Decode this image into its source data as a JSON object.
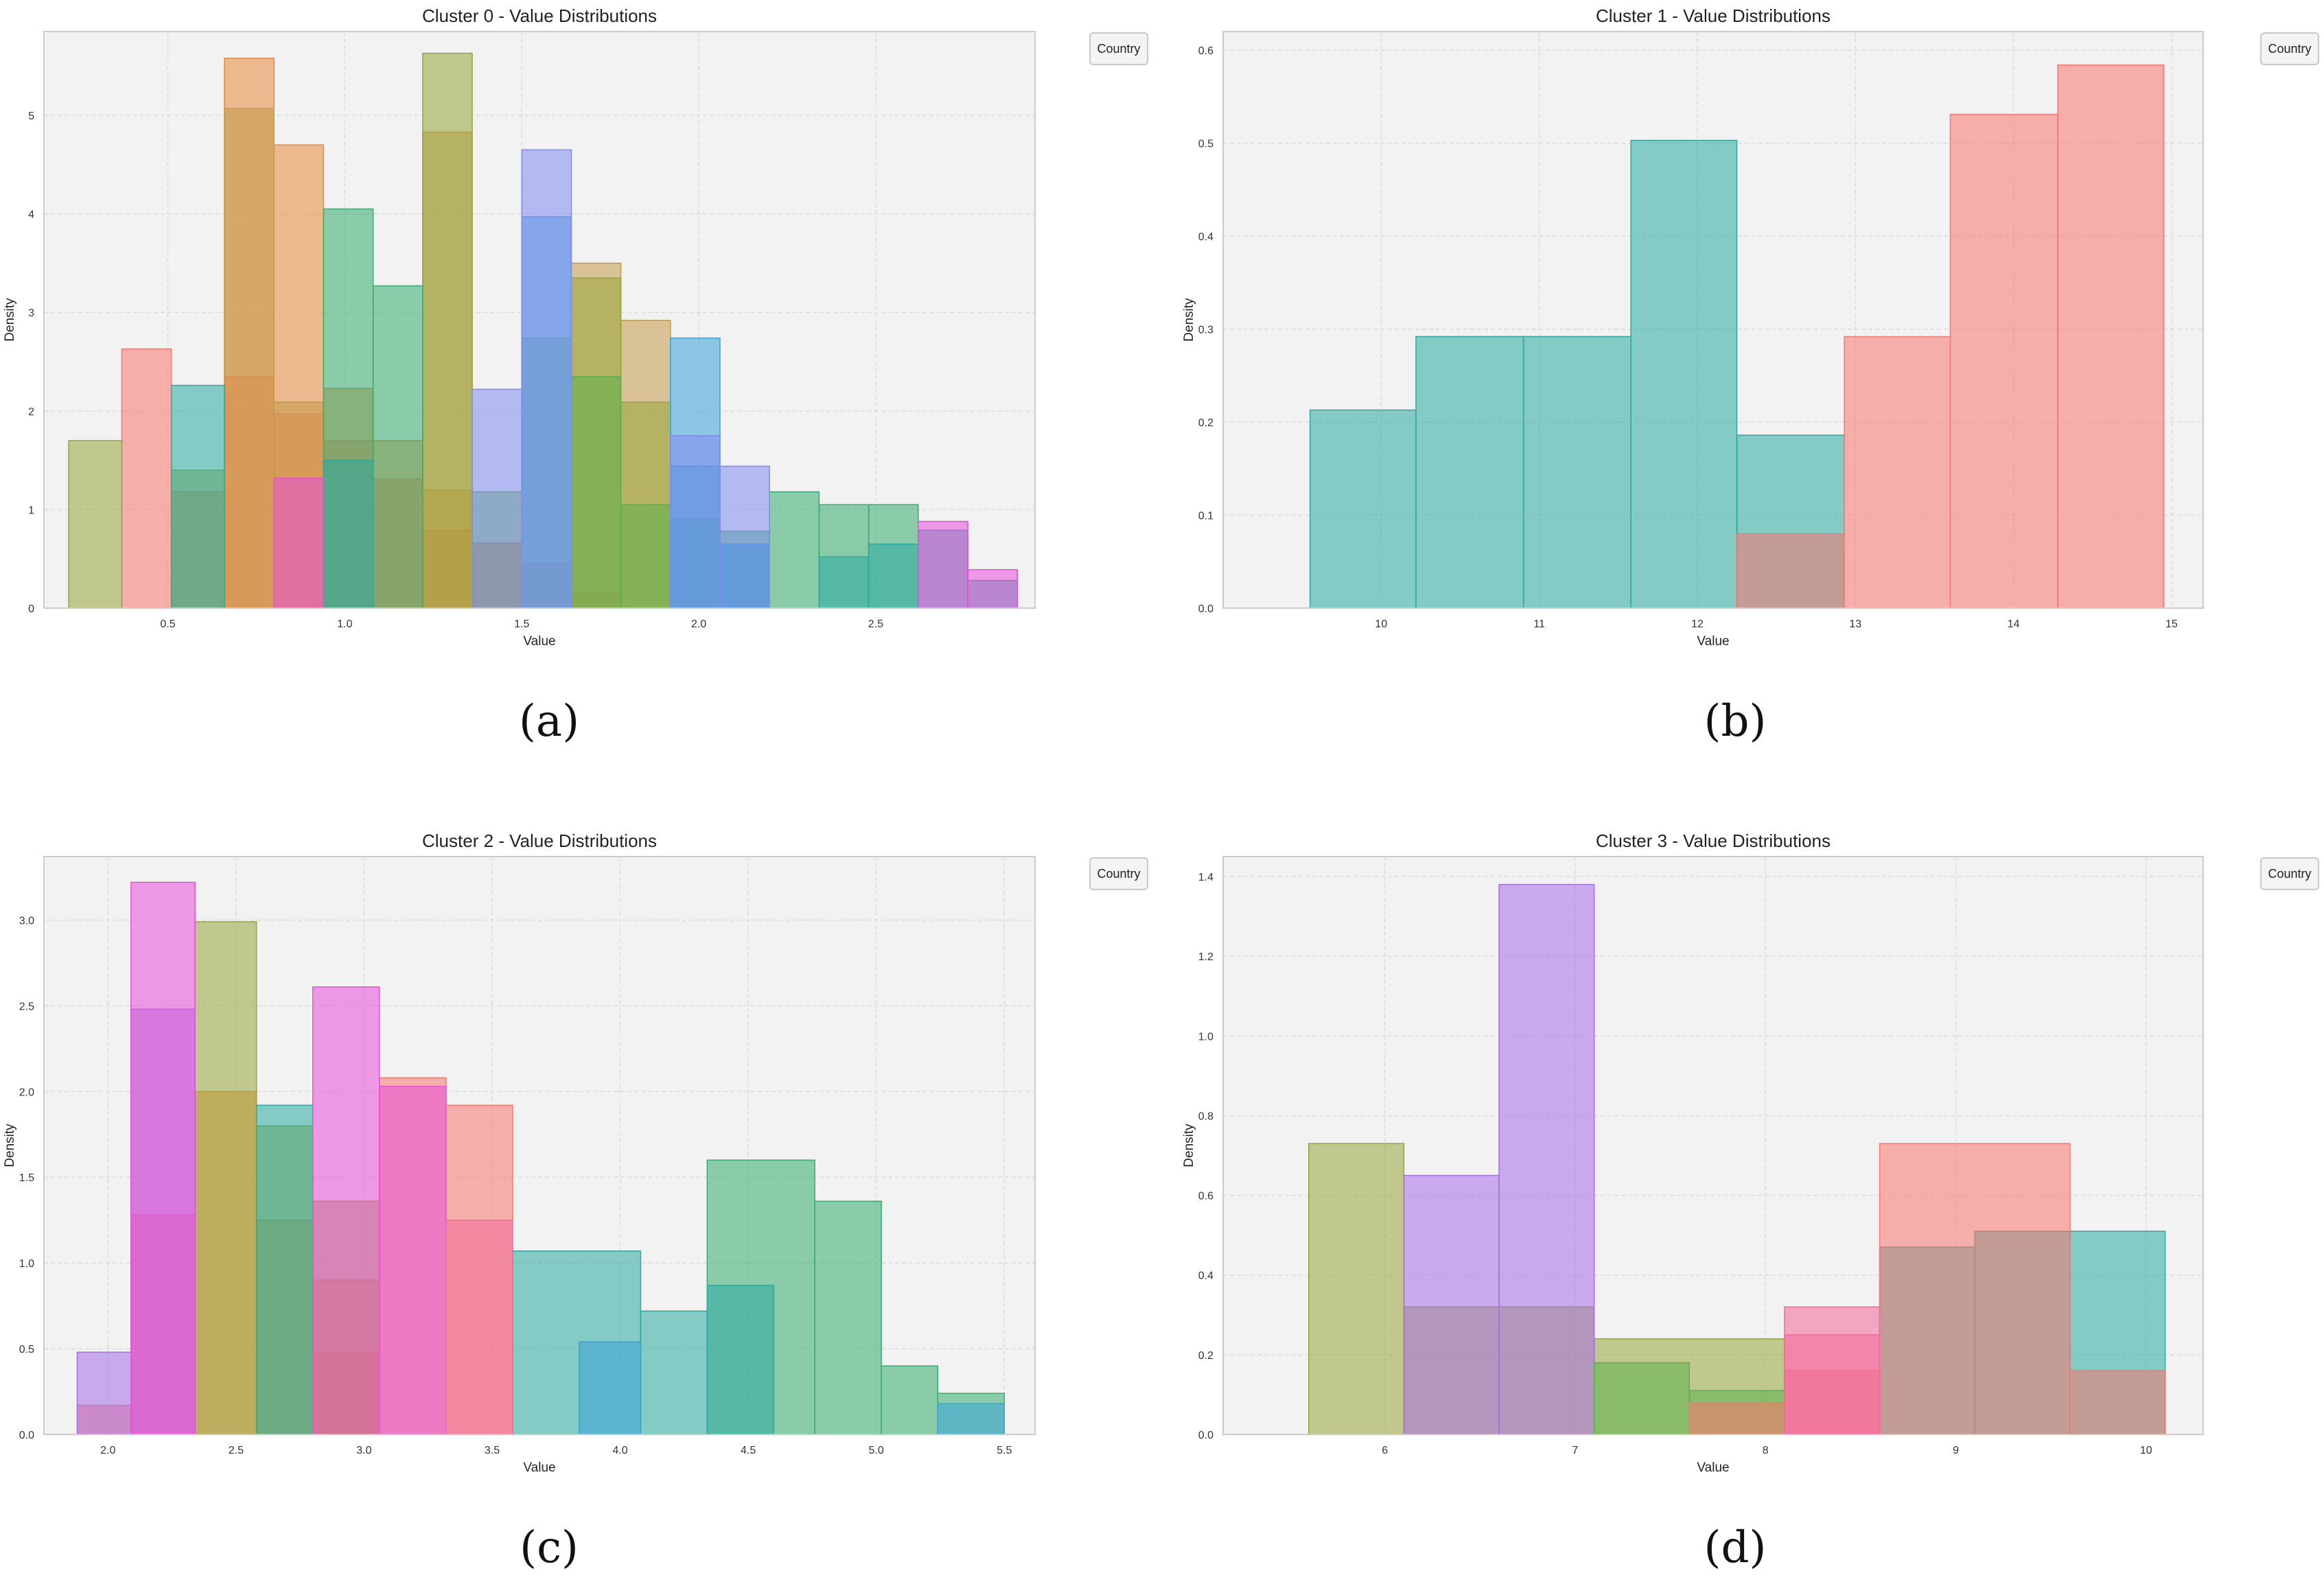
{
  "colors": {
    "plot_background": "#f2f2f2",
    "grid": "#dcdcdc",
    "spine": "#cccccc",
    "legend_border": "#c8c8c8"
  },
  "chart_data": [
    {
      "type": "histogram",
      "title": "Cluster 0 - Value Distributions",
      "xlabel": "Value",
      "ylabel": "Density",
      "legend_title": "Country",
      "legend_placement": "outside-top-right",
      "caption": "(a)",
      "grid": true,
      "xlim": [
        0.15,
        2.95
      ],
      "ylim": [
        0,
        5.85
      ],
      "xticks": [
        0.5,
        1.0,
        1.5,
        2.0,
        2.5
      ],
      "xtick_labels": [
        "0.5",
        "1.0",
        "1.5",
        "2.0",
        "2.5"
      ],
      "yticks": [
        0,
        1,
        2,
        3,
        4,
        5
      ],
      "ytick_labels": [
        "0",
        "1",
        "2",
        "3",
        "4",
        "5"
      ],
      "series": [
        {
          "color": "#f8766d",
          "bins": [
            [
              0.37,
              0.51,
              2.63
            ],
            [
              0.51,
              0.66,
              1.18
            ],
            [
              0.66,
              0.8,
              2.35
            ],
            [
              0.8,
              0.94,
              1.97
            ],
            [
              0.94,
              1.08,
              1.7
            ],
            [
              1.08,
              1.22,
              1.31
            ],
            [
              1.22,
              1.36,
              0.79
            ],
            [
              1.36,
              1.5,
              0.66
            ],
            [
              1.5,
              1.64,
              0.45
            ],
            [
              1.64,
              1.78,
              0.15
            ]
          ]
        },
        {
          "color": "#e58a3a",
          "bins": [
            [
              0.66,
              0.8,
              5.58
            ],
            [
              0.8,
              0.94,
              4.7
            ],
            [
              0.94,
              1.08,
              2.23
            ],
            [
              1.08,
              1.22,
              1.7
            ],
            [
              1.22,
              1.36,
              1.2
            ],
            [
              1.36,
              1.5,
              0.65
            ]
          ]
        },
        {
          "color": "#c49a4a",
          "bins": [
            [
              0.66,
              0.8,
              5.07
            ],
            [
              0.8,
              0.94,
              2.09
            ],
            [
              1.22,
              1.36,
              4.83
            ],
            [
              1.64,
              1.78,
              3.5
            ],
            [
              1.78,
              1.92,
              2.92
            ]
          ]
        },
        {
          "color": "#97a63a",
          "bins": [
            [
              0.22,
              0.37,
              1.7
            ],
            [
              0.51,
              0.66,
              1.4
            ],
            [
              1.22,
              1.36,
              5.63
            ],
            [
              1.64,
              1.78,
              3.35
            ],
            [
              1.78,
              1.92,
              2.09
            ]
          ]
        },
        {
          "color": "#5bb04a",
          "bins": [
            [
              1.36,
              1.5,
              1.18
            ],
            [
              1.5,
              1.64,
              2.74
            ],
            [
              1.64,
              1.78,
              2.35
            ],
            [
              1.78,
              1.92,
              1.05
            ]
          ]
        },
        {
          "color": "#35ad70",
          "bins": [
            [
              0.94,
              1.08,
              4.05
            ],
            [
              1.08,
              1.22,
              3.27
            ],
            [
              1.92,
              2.06,
              0.91
            ],
            [
              2.06,
              2.2,
              0.78
            ],
            [
              2.2,
              2.34,
              1.18
            ],
            [
              2.34,
              2.48,
              1.05
            ],
            [
              2.48,
              2.62,
              1.05
            ]
          ]
        },
        {
          "color": "#29aaa0",
          "bins": [
            [
              0.51,
              0.66,
              2.26
            ],
            [
              0.94,
              1.08,
              1.5
            ],
            [
              1.92,
              2.06,
              1.44
            ],
            [
              2.06,
              2.2,
              0.65
            ],
            [
              2.34,
              2.48,
              0.52
            ],
            [
              2.48,
              2.62,
              0.65
            ],
            [
              2.62,
              2.76,
              0.79
            ],
            [
              2.76,
              2.9,
              0.28
            ]
          ]
        },
        {
          "color": "#3aa2d8",
          "bins": [
            [
              1.5,
              1.64,
              3.97
            ],
            [
              1.92,
              2.06,
              2.74
            ],
            [
              2.06,
              2.2,
              0.65
            ]
          ]
        },
        {
          "color": "#7f8cf0",
          "bins": [
            [
              1.36,
              1.5,
              2.22
            ],
            [
              1.5,
              1.64,
              4.65
            ],
            [
              1.92,
              2.06,
              1.75
            ],
            [
              2.06,
              2.2,
              1.44
            ]
          ]
        },
        {
          "color": "#e84fd8",
          "bins": [
            [
              0.8,
              0.94,
              1.32
            ],
            [
              2.62,
              2.76,
              0.88
            ],
            [
              2.76,
              2.9,
              0.39
            ]
          ]
        }
      ]
    },
    {
      "type": "histogram",
      "title": "Cluster 1 - Value Distributions",
      "xlabel": "Value",
      "ylabel": "Density",
      "legend_title": "Country",
      "legend_placement": "outside-top-right",
      "caption": "(b)",
      "grid": true,
      "xlim": [
        9.0,
        15.2
      ],
      "ylim": [
        0,
        0.62
      ],
      "xticks": [
        10,
        11,
        12,
        13,
        14,
        15
      ],
      "xtick_labels": [
        "10",
        "11",
        "12",
        "13",
        "14",
        "15"
      ],
      "yticks": [
        0.0,
        0.1,
        0.2,
        0.3,
        0.4,
        0.5,
        0.6
      ],
      "ytick_labels": [
        "0.0",
        "0.1",
        "0.2",
        "0.3",
        "0.4",
        "0.5",
        "0.6"
      ],
      "series": [
        {
          "color": "#29aaa0",
          "bins": [
            [
              9.55,
              10.22,
              0.213
            ],
            [
              10.22,
              10.9,
              0.292
            ],
            [
              10.9,
              11.58,
              0.292
            ],
            [
              11.58,
              12.25,
              0.503
            ],
            [
              12.25,
              12.93,
              0.186
            ]
          ]
        },
        {
          "color": "#f8766d",
          "bins": [
            [
              12.25,
              12.93,
              0.08
            ],
            [
              12.93,
              13.6,
              0.292
            ],
            [
              13.6,
              14.28,
              0.531
            ],
            [
              14.28,
              14.95,
              0.584
            ]
          ]
        }
      ]
    },
    {
      "type": "histogram",
      "title": "Cluster 2 - Value Distributions",
      "xlabel": "Value",
      "ylabel": "Density",
      "legend_title": "Country",
      "legend_placement": "outside-top-right",
      "caption": "(c)",
      "grid": true,
      "xlim": [
        1.75,
        5.62
      ],
      "ylim": [
        0,
        3.37
      ],
      "xticks": [
        2.0,
        2.5,
        3.0,
        3.5,
        4.0,
        4.5,
        5.0,
        5.5
      ],
      "xtick_labels": [
        "2.0",
        "2.5",
        "3.0",
        "3.5",
        "4.0",
        "4.5",
        "5.0",
        "5.5"
      ],
      "yticks": [
        0.0,
        0.5,
        1.0,
        1.5,
        2.0,
        2.5,
        3.0
      ],
      "ytick_labels": [
        "0.0",
        "0.5",
        "1.0",
        "1.5",
        "2.0",
        "2.5",
        "3.0"
      ],
      "series": [
        {
          "color": "#f8766d",
          "bins": [
            [
              1.88,
              2.09,
              0.17
            ],
            [
              2.09,
              2.34,
              1.28
            ],
            [
              2.8,
              3.06,
              0.48
            ],
            [
              3.06,
              3.32,
              2.08
            ],
            [
              3.32,
              3.58,
              1.92
            ]
          ]
        },
        {
          "color": "#e58a3a",
          "bins": [
            [
              2.34,
              2.58,
              2.0
            ],
            [
              2.58,
              2.8,
              1.25
            ],
            [
              2.8,
              3.06,
              0.9
            ]
          ]
        },
        {
          "color": "#97a63a",
          "bins": [
            [
              2.34,
              2.58,
              2.99
            ],
            [
              2.58,
              2.8,
              1.8
            ],
            [
              2.8,
              3.06,
              1.36
            ]
          ]
        },
        {
          "color": "#35ad70",
          "bins": [
            [
              4.34,
              4.76,
              1.6
            ],
            [
              4.76,
              5.02,
              1.36
            ],
            [
              5.02,
              5.24,
              0.4
            ],
            [
              5.24,
              5.5,
              0.24
            ]
          ]
        },
        {
          "color": "#29aaa0",
          "bins": [
            [
              2.58,
              2.8,
              1.92
            ],
            [
              3.58,
              4.08,
              1.07
            ],
            [
              4.08,
              4.34,
              0.72
            ],
            [
              4.34,
              4.6,
              0.87
            ]
          ]
        },
        {
          "color": "#3aa2d8",
          "bins": [
            [
              3.84,
              4.08,
              0.54
            ],
            [
              5.24,
              5.5,
              0.18
            ]
          ]
        },
        {
          "color": "#a66ee8",
          "bins": [
            [
              1.88,
              2.09,
              0.48
            ],
            [
              2.09,
              2.34,
              2.48
            ]
          ]
        },
        {
          "color": "#e84fd8",
          "bins": [
            [
              2.09,
              2.34,
              3.22
            ],
            [
              2.8,
              3.06,
              2.61
            ],
            [
              3.06,
              3.32,
              2.03
            ]
          ]
        },
        {
          "color": "#f06a9a",
          "bins": [
            [
              3.32,
              3.58,
              1.25
            ]
          ]
        }
      ]
    },
    {
      "type": "histogram",
      "title": "Cluster 3 - Value Distributions",
      "xlabel": "Value",
      "ylabel": "Density",
      "legend_title": "Country",
      "legend_placement": "outside-top-right",
      "caption": "(d)",
      "grid": true,
      "xlim": [
        5.15,
        10.3
      ],
      "ylim": [
        0,
        1.45
      ],
      "xticks": [
        6,
        7,
        8,
        9,
        10
      ],
      "xtick_labels": [
        "6",
        "7",
        "8",
        "9",
        "10"
      ],
      "yticks": [
        0.0,
        0.2,
        0.4,
        0.6,
        0.8,
        1.0,
        1.2,
        1.4
      ],
      "ytick_labels": [
        "0.0",
        "0.2",
        "0.4",
        "0.6",
        "0.8",
        "1.0",
        "1.2",
        "1.4"
      ],
      "series": [
        {
          "color": "#97a63a",
          "bins": [
            [
              5.6,
              6.1,
              0.73
            ],
            [
              6.1,
              7.1,
              0.32
            ],
            [
              7.1,
              8.1,
              0.24
            ]
          ]
        },
        {
          "color": "#a66ee8",
          "bins": [
            [
              6.1,
              6.6,
              0.65
            ],
            [
              6.6,
              7.1,
              1.38
            ]
          ]
        },
        {
          "color": "#5bb04a",
          "bins": [
            [
              7.1,
              7.6,
              0.18
            ],
            [
              7.6,
              8.1,
              0.11
            ]
          ]
        },
        {
          "color": "#29aaa0",
          "bins": [
            [
              8.6,
              9.1,
              0.47
            ],
            [
              9.1,
              9.6,
              0.51
            ],
            [
              9.6,
              10.1,
              0.51
            ]
          ]
        },
        {
          "color": "#f8766d",
          "bins": [
            [
              7.6,
              8.1,
              0.08
            ],
            [
              8.1,
              8.6,
              0.16
            ],
            [
              8.6,
              9.6,
              0.73
            ],
            [
              9.6,
              10.1,
              0.16
            ]
          ]
        },
        {
          "color": "#f06a9a",
          "bins": [
            [
              8.1,
              8.6,
              0.32
            ],
            [
              8.1,
              8.6,
              0.25
            ]
          ]
        }
      ]
    }
  ]
}
